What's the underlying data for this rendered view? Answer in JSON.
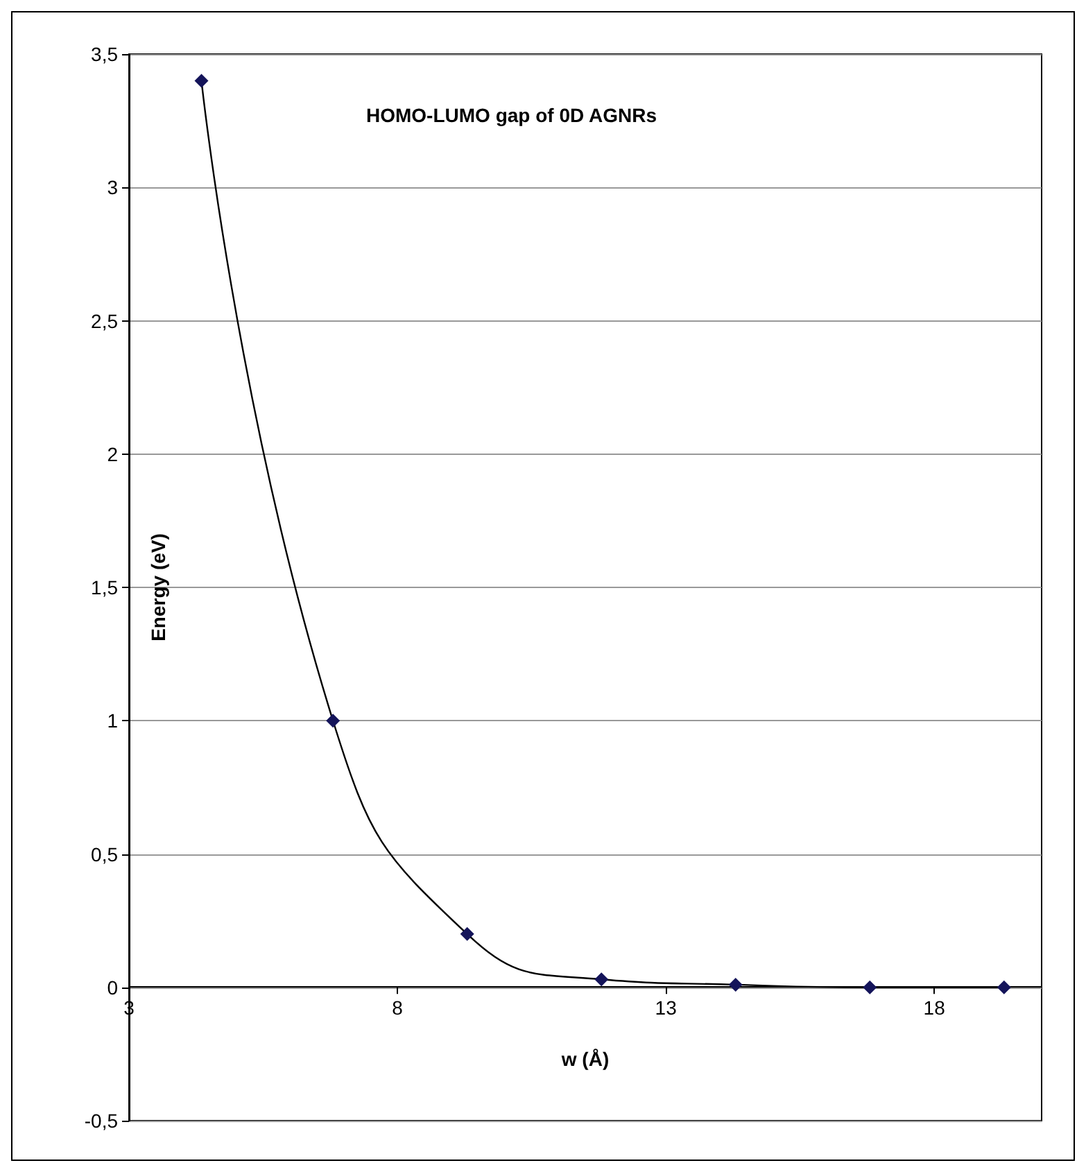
{
  "chart_data": {
    "type": "line",
    "title": "HOMO-LUMO gap of 0D AGNRs",
    "xlabel": "w (Å)",
    "ylabel": "Energy (eV)",
    "x": [
      4.35,
      6.8,
      9.3,
      11.8,
      14.3,
      16.8,
      19.3
    ],
    "series": [
      {
        "color": "#14145a",
        "values": [
          3.4,
          1.0,
          0.2,
          0.03,
          0.01,
          0.0,
          0.0
        ]
      }
    ],
    "xlim": [
      3,
      20
    ],
    "xticks": [
      3,
      8,
      13,
      18
    ],
    "ylim": [
      -0.5,
      3.5
    ],
    "yticks": [
      {
        "value": -0.5,
        "label": "-0,5"
      },
      0,
      {
        "value": 0.5,
        "label": "0,5"
      },
      1,
      {
        "value": 1.5,
        "label": "1,5"
      },
      2,
      {
        "value": 2.5,
        "label": "2,5"
      },
      3,
      {
        "value": 3.5,
        "label": "3,5"
      }
    ],
    "grid": "y",
    "marker": "diamond",
    "line_style": "solid"
  }
}
